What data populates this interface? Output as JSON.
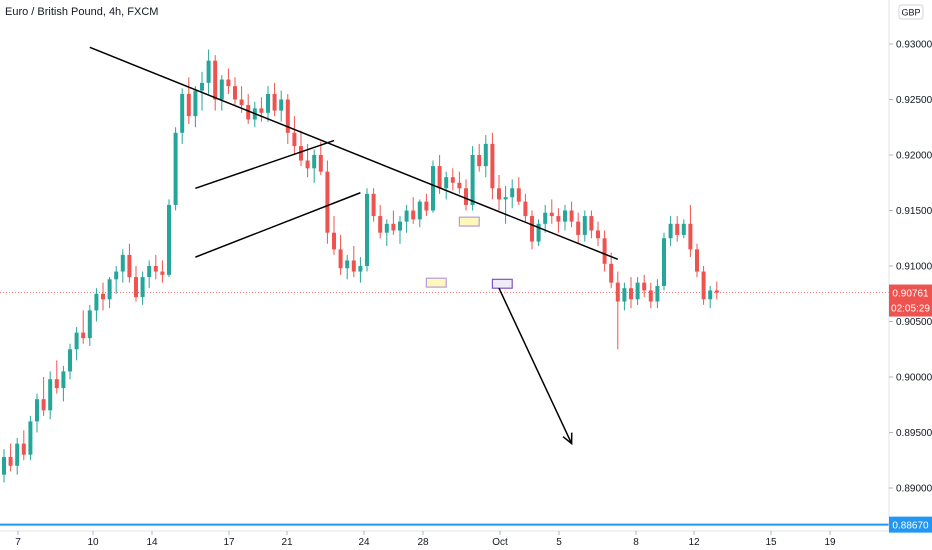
{
  "header": {
    "title": "Euro / British Pound, 4h, FXCM"
  },
  "currency_button": "GBP",
  "colors": {
    "up": "#26a69a",
    "down": "#ef5350",
    "price_tag": "#ef5350",
    "support_line": "#2196f3",
    "drawing": "#000000",
    "highlight_yellow": "#fff59d",
    "highlight_purple": "#7e57c2"
  },
  "price_tag": {
    "price": "0.90761",
    "countdown": "02:05:29"
  },
  "support_tag": {
    "price": "0.88670"
  },
  "chart_data": {
    "type": "candlestick",
    "symbol": "EURGBP",
    "timeframe": "4h",
    "y_ticks": [
      "0.93000",
      "0.92500",
      "0.92000",
      "0.91500",
      "0.91000",
      "0.90500",
      "0.90000",
      "0.89500",
      "0.89000"
    ],
    "ylim": [
      0.8855,
      0.934
    ],
    "x_ticks": [
      "7",
      "10",
      "14",
      "17",
      "21",
      "24",
      "28",
      "Oct",
      "5",
      "8",
      "12",
      "15",
      "19"
    ],
    "current_price": 0.90761,
    "support_level": 0.8867,
    "grid": false,
    "candles": [
      [
        0.8912,
        0.8935,
        0.8905,
        0.8928
      ],
      [
        0.8928,
        0.894,
        0.8915,
        0.892
      ],
      [
        0.892,
        0.8945,
        0.8912,
        0.894
      ],
      [
        0.894,
        0.8952,
        0.8925,
        0.893
      ],
      [
        0.893,
        0.8965,
        0.8925,
        0.896
      ],
      [
        0.896,
        0.8985,
        0.895,
        0.898
      ],
      [
        0.898,
        0.9,
        0.8965,
        0.897
      ],
      [
        0.897,
        0.9005,
        0.8962,
        0.8998
      ],
      [
        0.8998,
        0.9015,
        0.8985,
        0.899
      ],
      [
        0.899,
        0.901,
        0.8978,
        0.9005
      ],
      [
        0.9005,
        0.903,
        0.8998,
        0.9025
      ],
      [
        0.9025,
        0.9045,
        0.9015,
        0.904
      ],
      [
        0.904,
        0.906,
        0.903,
        0.9035
      ],
      [
        0.9035,
        0.9065,
        0.9028,
        0.906
      ],
      [
        0.906,
        0.908,
        0.905,
        0.9075
      ],
      [
        0.9075,
        0.9085,
        0.906,
        0.907
      ],
      [
        0.907,
        0.909,
        0.9062,
        0.9088
      ],
      [
        0.9088,
        0.91,
        0.9075,
        0.9095
      ],
      [
        0.9095,
        0.9115,
        0.9085,
        0.911
      ],
      [
        0.911,
        0.912,
        0.9085,
        0.909
      ],
      [
        0.909,
        0.91,
        0.9068,
        0.9072
      ],
      [
        0.9072,
        0.9095,
        0.9065,
        0.909
      ],
      [
        0.909,
        0.9105,
        0.908,
        0.91
      ],
      [
        0.91,
        0.911,
        0.9088,
        0.9095
      ],
      [
        0.9095,
        0.9105,
        0.9085,
        0.9092
      ],
      [
        0.9092,
        0.916,
        0.909,
        0.9155
      ],
      [
        0.9155,
        0.9225,
        0.915,
        0.922
      ],
      [
        0.922,
        0.926,
        0.921,
        0.9255
      ],
      [
        0.9255,
        0.927,
        0.9228,
        0.9235
      ],
      [
        0.9235,
        0.9262,
        0.9225,
        0.9258
      ],
      [
        0.9258,
        0.9275,
        0.924,
        0.9265
      ],
      [
        0.9265,
        0.9295,
        0.9255,
        0.9285
      ],
      [
        0.9285,
        0.929,
        0.924,
        0.925
      ],
      [
        0.925,
        0.9272,
        0.924,
        0.9268
      ],
      [
        0.9268,
        0.9278,
        0.9255,
        0.9262
      ],
      [
        0.9262,
        0.927,
        0.9245,
        0.925
      ],
      [
        0.925,
        0.9262,
        0.9238,
        0.9245
      ],
      [
        0.9245,
        0.9255,
        0.9228,
        0.9232
      ],
      [
        0.9232,
        0.9248,
        0.9225,
        0.9242
      ],
      [
        0.9242,
        0.9252,
        0.923,
        0.9238
      ],
      [
        0.9238,
        0.9262,
        0.923,
        0.9255
      ],
      [
        0.9255,
        0.9265,
        0.9235,
        0.924
      ],
      [
        0.924,
        0.9258,
        0.923,
        0.925
      ],
      [
        0.925,
        0.9255,
        0.921,
        0.922
      ],
      [
        0.922,
        0.9235,
        0.92,
        0.9208
      ],
      [
        0.9208,
        0.9222,
        0.919,
        0.9195
      ],
      [
        0.9195,
        0.921,
        0.918,
        0.9188
      ],
      [
        0.9188,
        0.9205,
        0.9175,
        0.92
      ],
      [
        0.92,
        0.9212,
        0.9182,
        0.9185
      ],
      [
        0.9185,
        0.9195,
        0.912,
        0.913
      ],
      [
        0.913,
        0.9145,
        0.911,
        0.9115
      ],
      [
        0.9115,
        0.9128,
        0.9092,
        0.9098
      ],
      [
        0.9098,
        0.911,
        0.9088,
        0.9105
      ],
      [
        0.9105,
        0.9118,
        0.909,
        0.9095
      ],
      [
        0.9095,
        0.9108,
        0.9085,
        0.91
      ],
      [
        0.91,
        0.917,
        0.9095,
        0.9165
      ],
      [
        0.9165,
        0.917,
        0.914,
        0.9145
      ],
      [
        0.9145,
        0.9155,
        0.9125,
        0.913
      ],
      [
        0.913,
        0.9142,
        0.9118,
        0.9138
      ],
      [
        0.9138,
        0.915,
        0.9128,
        0.9132
      ],
      [
        0.9132,
        0.9145,
        0.912,
        0.914
      ],
      [
        0.914,
        0.9155,
        0.913,
        0.915
      ],
      [
        0.915,
        0.9162,
        0.9138,
        0.9142
      ],
      [
        0.9142,
        0.916,
        0.9135,
        0.9158
      ],
      [
        0.9158,
        0.9165,
        0.9145,
        0.915
      ],
      [
        0.915,
        0.9195,
        0.9148,
        0.919
      ],
      [
        0.919,
        0.92,
        0.9165,
        0.917
      ],
      [
        0.917,
        0.9185,
        0.916,
        0.918
      ],
      [
        0.918,
        0.9188,
        0.9168,
        0.9175
      ],
      [
        0.9175,
        0.9185,
        0.9165,
        0.917
      ],
      [
        0.917,
        0.9178,
        0.915,
        0.9155
      ],
      [
        0.9155,
        0.9208,
        0.915,
        0.92
      ],
      [
        0.92,
        0.921,
        0.9185,
        0.919
      ],
      [
        0.919,
        0.9218,
        0.918,
        0.921
      ],
      [
        0.921,
        0.922,
        0.916,
        0.917
      ],
      [
        0.917,
        0.9182,
        0.915,
        0.916
      ],
      [
        0.916,
        0.9172,
        0.9138,
        0.9162
      ],
      [
        0.9162,
        0.9178,
        0.9152,
        0.917
      ],
      [
        0.917,
        0.918,
        0.9155,
        0.9158
      ],
      [
        0.9158,
        0.9165,
        0.914,
        0.9145
      ],
      [
        0.9145,
        0.915,
        0.9115,
        0.9122
      ],
      [
        0.9122,
        0.9142,
        0.9118,
        0.9138
      ],
      [
        0.9138,
        0.9155,
        0.913,
        0.9148
      ],
      [
        0.9148,
        0.916,
        0.9138,
        0.9145
      ],
      [
        0.9145,
        0.9152,
        0.913,
        0.914
      ],
      [
        0.914,
        0.9155,
        0.9132,
        0.915
      ],
      [
        0.915,
        0.9158,
        0.9135,
        0.914
      ],
      [
        0.914,
        0.9148,
        0.912,
        0.9128
      ],
      [
        0.9128,
        0.915,
        0.9122,
        0.9145
      ],
      [
        0.9145,
        0.915,
        0.9125,
        0.9132
      ],
      [
        0.9132,
        0.914,
        0.9118,
        0.9125
      ],
      [
        0.9125,
        0.9132,
        0.9095,
        0.9102
      ],
      [
        0.9102,
        0.9112,
        0.908,
        0.9085
      ],
      [
        0.9085,
        0.9095,
        0.9025,
        0.9068
      ],
      [
        0.9068,
        0.9085,
        0.906,
        0.908
      ],
      [
        0.908,
        0.909,
        0.9062,
        0.907
      ],
      [
        0.907,
        0.909,
        0.9065,
        0.9085
      ],
      [
        0.9085,
        0.9092,
        0.9072,
        0.9078
      ],
      [
        0.9078,
        0.9085,
        0.9062,
        0.9068
      ],
      [
        0.9068,
        0.9088,
        0.9062,
        0.9082
      ],
      [
        0.9082,
        0.913,
        0.9078,
        0.9125
      ],
      [
        0.9125,
        0.9145,
        0.9118,
        0.9138
      ],
      [
        0.9138,
        0.9145,
        0.9122,
        0.9128
      ],
      [
        0.9128,
        0.9142,
        0.9125,
        0.9138
      ],
      [
        0.9138,
        0.9155,
        0.9108,
        0.9115
      ],
      [
        0.9115,
        0.912,
        0.909,
        0.9095
      ],
      [
        0.9095,
        0.91,
        0.9065,
        0.907
      ],
      [
        0.907,
        0.9082,
        0.9062,
        0.9078
      ],
      [
        0.9078,
        0.9086,
        0.907,
        0.9076
      ]
    ],
    "annotations": [
      {
        "type": "trendline",
        "from": [
          13,
          0.9297
        ],
        "to": [
          93,
          0.9106
        ]
      },
      {
        "type": "channel_line",
        "from": [
          29,
          0.917
        ],
        "to": [
          50,
          0.9213
        ]
      },
      {
        "type": "channel_line",
        "from": [
          29,
          0.9108
        ],
        "to": [
          54,
          0.9166
        ]
      },
      {
        "type": "box",
        "color": "highlight_yellow",
        "x": [
          64,
          67
        ],
        "y": [
          0.9081,
          0.9089
        ]
      },
      {
        "type": "box",
        "color": "highlight_yellow",
        "x": [
          69,
          72
        ],
        "y": [
          0.9136,
          0.9144
        ]
      },
      {
        "type": "box",
        "color": "highlight_purple",
        "x": [
          74,
          77
        ],
        "y": [
          0.908,
          0.9088
        ]
      },
      {
        "type": "arrow",
        "from": [
          75,
          0.908
        ],
        "to": [
          86,
          0.894
        ]
      }
    ]
  }
}
